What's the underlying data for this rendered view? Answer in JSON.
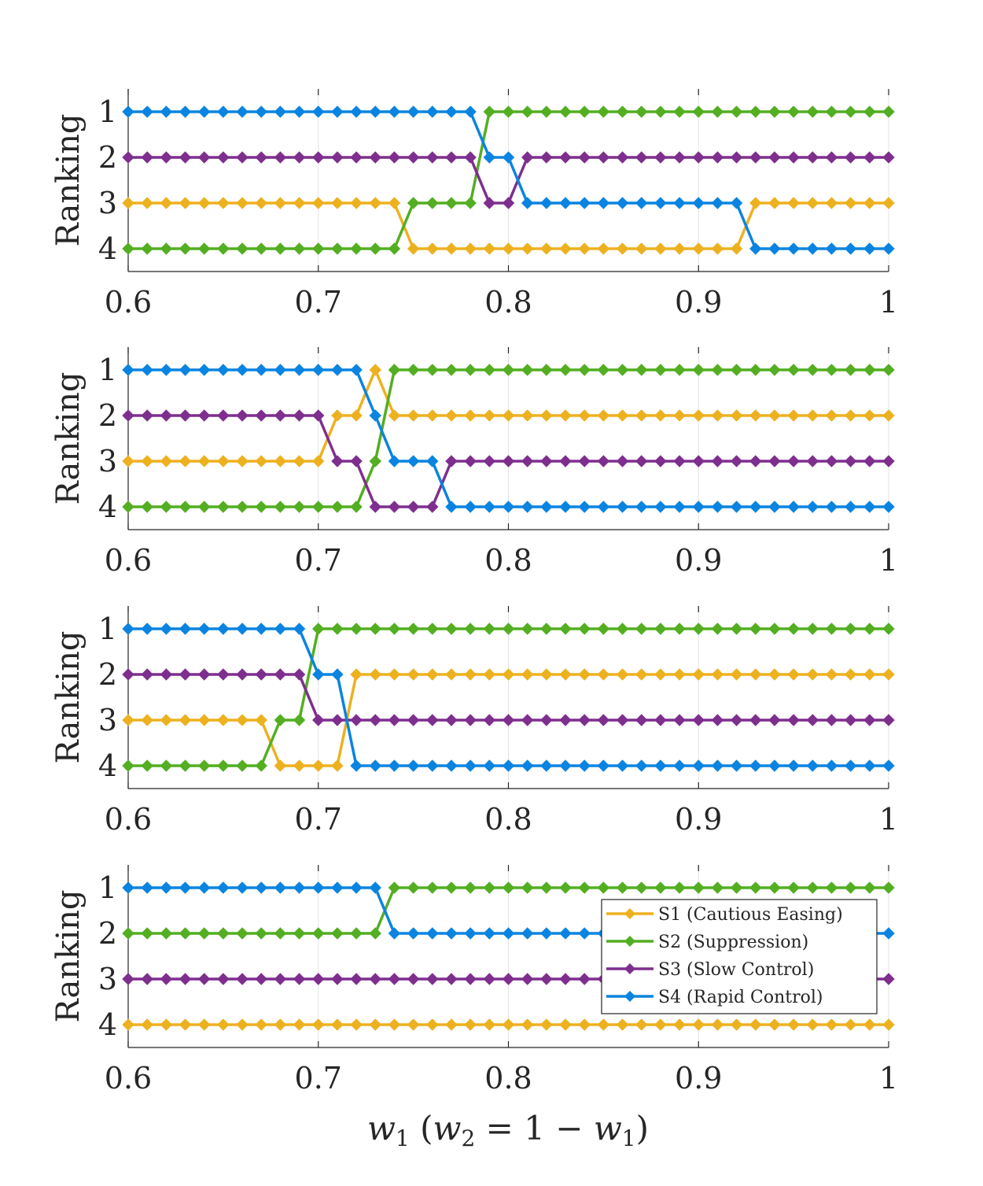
{
  "colors": {
    "S1": "#EDB120",
    "S2": "#53AE22",
    "S3": "#7E2F8E",
    "S4": "#0A84E0",
    "axis": "#262626",
    "grid": "#E3E3E3"
  },
  "xlabel": "w1 (w2 = 1 − w1)",
  "legend": {
    "placement": "lower-right of bottom panel",
    "entries": [
      "S1 (Cautious Easing)",
      "S2 (Suppression)",
      "S3 (Slow Control)",
      "S4 (Rapid Control)"
    ]
  },
  "chart_data": [
    {
      "type": "line",
      "x_start": 0.6,
      "x_end": 1.0,
      "x_step": 0.01,
      "xlim": [
        0.6,
        1.0
      ],
      "ylim": [
        0.5,
        4.5
      ],
      "y_reversed": true,
      "xticks": [
        "0.6",
        "0.7",
        "0.8",
        "0.9",
        "1"
      ],
      "yticks": [
        "1",
        "2",
        "3",
        "4"
      ],
      "ylabel": "Ranking",
      "grid": "vertical",
      "series": [
        {
          "name": "S1 (Cautious Easing)",
          "key": "S1",
          "rank_segments": [
            [
              3,
              15
            ],
            [
              4,
              18
            ],
            [
              3,
              8
            ]
          ]
        },
        {
          "name": "S2 (Suppression)",
          "key": "S2",
          "rank_segments": [
            [
              4,
              15
            ],
            [
              3,
              4
            ],
            [
              1,
              22
            ]
          ]
        },
        {
          "name": "S3 (Slow Control)",
          "key": "S3",
          "rank_segments": [
            [
              2,
              19
            ],
            [
              3,
              2
            ],
            [
              2,
              20
            ]
          ]
        },
        {
          "name": "S4 (Rapid Control)",
          "key": "S4",
          "rank_segments": [
            [
              1,
              19
            ],
            [
              2,
              2
            ],
            [
              3,
              12
            ],
            [
              4,
              8
            ]
          ]
        }
      ]
    },
    {
      "type": "line",
      "x_start": 0.6,
      "x_end": 1.0,
      "x_step": 0.01,
      "xlim": [
        0.6,
        1.0
      ],
      "ylim": [
        0.5,
        4.5
      ],
      "y_reversed": true,
      "xticks": [
        "0.6",
        "0.7",
        "0.8",
        "0.9",
        "1"
      ],
      "yticks": [
        "1",
        "2",
        "3",
        "4"
      ],
      "ylabel": "Ranking",
      "grid": "vertical",
      "series": [
        {
          "name": "S1 (Cautious Easing)",
          "key": "S1",
          "rank_segments": [
            [
              3,
              11
            ],
            [
              2,
              2
            ],
            [
              1,
              1
            ],
            [
              2,
              27
            ]
          ]
        },
        {
          "name": "S2 (Suppression)",
          "key": "S2",
          "rank_segments": [
            [
              4,
              13
            ],
            [
              3,
              1
            ],
            [
              1,
              27
            ]
          ]
        },
        {
          "name": "S3 (Slow Control)",
          "key": "S3",
          "rank_segments": [
            [
              2,
              11
            ],
            [
              3,
              2
            ],
            [
              4,
              4
            ],
            [
              3,
              24
            ]
          ]
        },
        {
          "name": "S4 (Rapid Control)",
          "key": "S4",
          "rank_segments": [
            [
              1,
              13
            ],
            [
              2,
              1
            ],
            [
              3,
              3
            ],
            [
              4,
              24
            ]
          ]
        }
      ]
    },
    {
      "type": "line",
      "x_start": 0.6,
      "x_end": 1.0,
      "x_step": 0.01,
      "xlim": [
        0.6,
        1.0
      ],
      "ylim": [
        0.5,
        4.5
      ],
      "y_reversed": true,
      "xticks": [
        "0.6",
        "0.7",
        "0.8",
        "0.9",
        "1"
      ],
      "yticks": [
        "1",
        "2",
        "3",
        "4"
      ],
      "ylabel": "Ranking",
      "grid": "vertical",
      "series": [
        {
          "name": "S1 (Cautious Easing)",
          "key": "S1",
          "rank_segments": [
            [
              3,
              8
            ],
            [
              4,
              4
            ],
            [
              2,
              29
            ]
          ]
        },
        {
          "name": "S2 (Suppression)",
          "key": "S2",
          "rank_segments": [
            [
              4,
              8
            ],
            [
              3,
              2
            ],
            [
              1,
              31
            ]
          ]
        },
        {
          "name": "S3 (Slow Control)",
          "key": "S3",
          "rank_segments": [
            [
              2,
              10
            ],
            [
              3,
              31
            ]
          ]
        },
        {
          "name": "S4 (Rapid Control)",
          "key": "S4",
          "rank_segments": [
            [
              1,
              10
            ],
            [
              2,
              2
            ],
            [
              4,
              29
            ]
          ]
        }
      ]
    },
    {
      "type": "line",
      "x_start": 0.6,
      "x_end": 1.0,
      "x_step": 0.01,
      "xlim": [
        0.6,
        1.0
      ],
      "ylim": [
        0.5,
        4.5
      ],
      "y_reversed": true,
      "xticks": [
        "0.6",
        "0.7",
        "0.8",
        "0.9",
        "1"
      ],
      "yticks": [
        "1",
        "2",
        "3",
        "4"
      ],
      "ylabel": "Ranking",
      "grid": "vertical",
      "series": [
        {
          "name": "S1 (Cautious Easing)",
          "key": "S1",
          "rank_segments": [
            [
              4,
              41
            ]
          ]
        },
        {
          "name": "S2 (Suppression)",
          "key": "S2",
          "rank_segments": [
            [
              2,
              14
            ],
            [
              1,
              27
            ]
          ]
        },
        {
          "name": "S3 (Slow Control)",
          "key": "S3",
          "rank_segments": [
            [
              3,
              41
            ]
          ]
        },
        {
          "name": "S4 (Rapid Control)",
          "key": "S4",
          "rank_segments": [
            [
              1,
              14
            ],
            [
              2,
              27
            ]
          ]
        }
      ]
    }
  ]
}
